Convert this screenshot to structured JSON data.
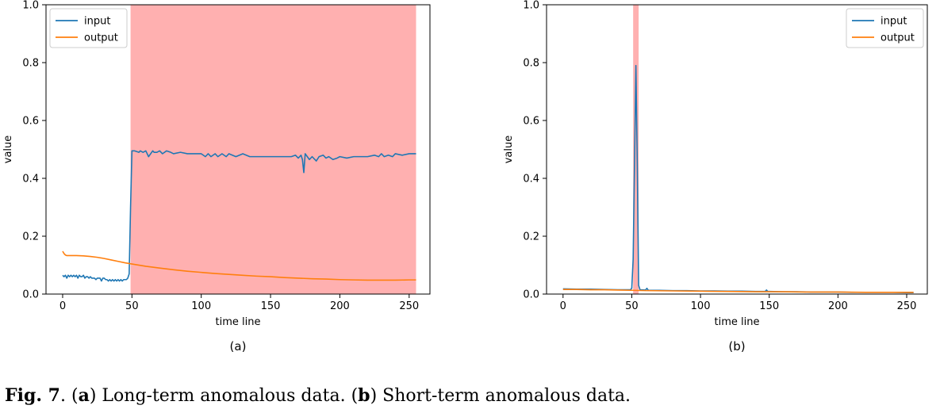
{
  "chart_data": [
    {
      "type": "line",
      "panel_label": "(a)",
      "xlabel": "time line",
      "ylabel": "value",
      "xlim": [
        -12,
        265
      ],
      "ylim": [
        0,
        1
      ],
      "xticks": [
        0,
        50,
        100,
        150,
        200,
        250
      ],
      "yticks": [
        0.0,
        0.2,
        0.4,
        0.6,
        0.8,
        1.0
      ],
      "ytick_labels": [
        "0.0",
        "0.2",
        "0.4",
        "0.6",
        "0.8",
        "1.0"
      ],
      "legend_position": "upper-left",
      "highlight_span": [
        49,
        255
      ],
      "highlight_color": "#ffb0b0",
      "series": [
        {
          "name": "input",
          "color": "#1f77b4",
          "x": [
            0,
            1,
            2,
            3,
            4,
            5,
            6,
            7,
            8,
            9,
            10,
            11,
            12,
            13,
            14,
            15,
            16,
            17,
            18,
            19,
            20,
            21,
            22,
            23,
            24,
            25,
            26,
            27,
            28,
            29,
            30,
            31,
            32,
            33,
            34,
            35,
            36,
            37,
            38,
            39,
            40,
            41,
            42,
            43,
            44,
            45,
            46,
            47,
            48,
            49,
            50,
            52,
            55,
            56,
            58,
            60,
            62,
            65,
            66,
            68,
            70,
            72,
            75,
            78,
            80,
            85,
            90,
            95,
            100,
            103,
            105,
            107,
            110,
            112,
            115,
            118,
            120,
            125,
            130,
            135,
            140,
            145,
            150,
            155,
            160,
            165,
            168,
            170,
            172,
            173,
            174,
            175,
            178,
            180,
            183,
            185,
            188,
            190,
            192,
            195,
            198,
            200,
            205,
            210,
            215,
            220,
            225,
            228,
            230,
            232,
            235,
            238,
            240,
            245,
            250,
            255
          ],
          "values": [
            0.065,
            0.06,
            0.065,
            0.055,
            0.065,
            0.06,
            0.065,
            0.06,
            0.065,
            0.06,
            0.065,
            0.055,
            0.065,
            0.06,
            0.06,
            0.065,
            0.055,
            0.06,
            0.06,
            0.055,
            0.06,
            0.055,
            0.055,
            0.055,
            0.05,
            0.055,
            0.055,
            0.055,
            0.045,
            0.055,
            0.055,
            0.05,
            0.05,
            0.045,
            0.05,
            0.045,
            0.05,
            0.045,
            0.05,
            0.045,
            0.05,
            0.045,
            0.05,
            0.045,
            0.05,
            0.05,
            0.05,
            0.055,
            0.07,
            0.3,
            0.495,
            0.495,
            0.49,
            0.495,
            0.49,
            0.495,
            0.475,
            0.495,
            0.49,
            0.49,
            0.495,
            0.485,
            0.495,
            0.49,
            0.485,
            0.49,
            0.485,
            0.485,
            0.485,
            0.475,
            0.485,
            0.475,
            0.485,
            0.475,
            0.485,
            0.475,
            0.485,
            0.475,
            0.485,
            0.475,
            0.475,
            0.475,
            0.475,
            0.475,
            0.475,
            0.475,
            0.48,
            0.47,
            0.48,
            0.465,
            0.42,
            0.485,
            0.465,
            0.475,
            0.46,
            0.475,
            0.48,
            0.47,
            0.475,
            0.465,
            0.47,
            0.475,
            0.47,
            0.475,
            0.475,
            0.475,
            0.48,
            0.475,
            0.485,
            0.475,
            0.48,
            0.475,
            0.485,
            0.48,
            0.485,
            0.485
          ]
        },
        {
          "name": "output",
          "color": "#ff7f0e",
          "x": [
            0,
            1,
            2,
            3,
            5,
            10,
            15,
            20,
            25,
            30,
            35,
            40,
            45,
            50,
            60,
            70,
            80,
            90,
            100,
            110,
            120,
            130,
            140,
            150,
            160,
            170,
            180,
            190,
            200,
            210,
            220,
            230,
            240,
            250,
            255
          ],
          "values": [
            0.148,
            0.14,
            0.135,
            0.133,
            0.133,
            0.133,
            0.132,
            0.13,
            0.127,
            0.123,
            0.118,
            0.113,
            0.108,
            0.104,
            0.096,
            0.09,
            0.084,
            0.079,
            0.075,
            0.071,
            0.068,
            0.065,
            0.062,
            0.06,
            0.057,
            0.055,
            0.053,
            0.052,
            0.05,
            0.049,
            0.048,
            0.048,
            0.048,
            0.049,
            0.049
          ]
        }
      ]
    },
    {
      "type": "line",
      "panel_label": "(b)",
      "xlabel": "time line",
      "ylabel": "value",
      "xlim": [
        -12,
        265
      ],
      "ylim": [
        0,
        1
      ],
      "xticks": [
        0,
        50,
        100,
        150,
        200,
        250
      ],
      "yticks": [
        0.0,
        0.2,
        0.4,
        0.6,
        0.8,
        1.0
      ],
      "ytick_labels": [
        "0.0",
        "0.2",
        "0.4",
        "0.6",
        "0.8",
        "1.0"
      ],
      "legend_position": "upper-right",
      "highlight_span": [
        51,
        55
      ],
      "highlight_color": "#ffb0b0",
      "series": [
        {
          "name": "input",
          "color": "#1f77b4",
          "x": [
            0,
            10,
            20,
            30,
            40,
            45,
            49,
            50,
            51,
            52,
            53,
            54,
            55,
            56,
            60,
            61,
            62,
            70,
            80,
            90,
            100,
            110,
            120,
            130,
            140,
            147,
            148,
            149,
            150,
            160,
            170,
            180,
            190,
            200,
            210,
            220,
            230,
            240,
            250,
            255
          ],
          "values": [
            0.018,
            0.017,
            0.017,
            0.016,
            0.015,
            0.015,
            0.015,
            0.02,
            0.12,
            0.45,
            0.79,
            0.45,
            0.03,
            0.015,
            0.014,
            0.02,
            0.013,
            0.013,
            0.012,
            0.012,
            0.011,
            0.011,
            0.01,
            0.01,
            0.009,
            0.009,
            0.014,
            0.009,
            0.009,
            0.008,
            0.008,
            0.007,
            0.007,
            0.007,
            0.006,
            0.006,
            0.006,
            0.006,
            0.005,
            0.005
          ]
        },
        {
          "name": "output",
          "color": "#ff7f0e",
          "x": [
            0,
            10,
            20,
            30,
            40,
            50,
            60,
            80,
            100,
            120,
            140,
            160,
            180,
            200,
            220,
            240,
            255
          ],
          "values": [
            0.016,
            0.016,
            0.015,
            0.015,
            0.014,
            0.013,
            0.012,
            0.011,
            0.01,
            0.009,
            0.008,
            0.008,
            0.007,
            0.007,
            0.006,
            0.006,
            0.006
          ]
        }
      ]
    }
  ],
  "caption": {
    "fig": "Fig. 7",
    "sep": ".  (",
    "a_label": "a",
    "a_text": ") Long-term anomalous data. (",
    "b_label": "b",
    "b_text": ") Short-term anomalous data."
  }
}
